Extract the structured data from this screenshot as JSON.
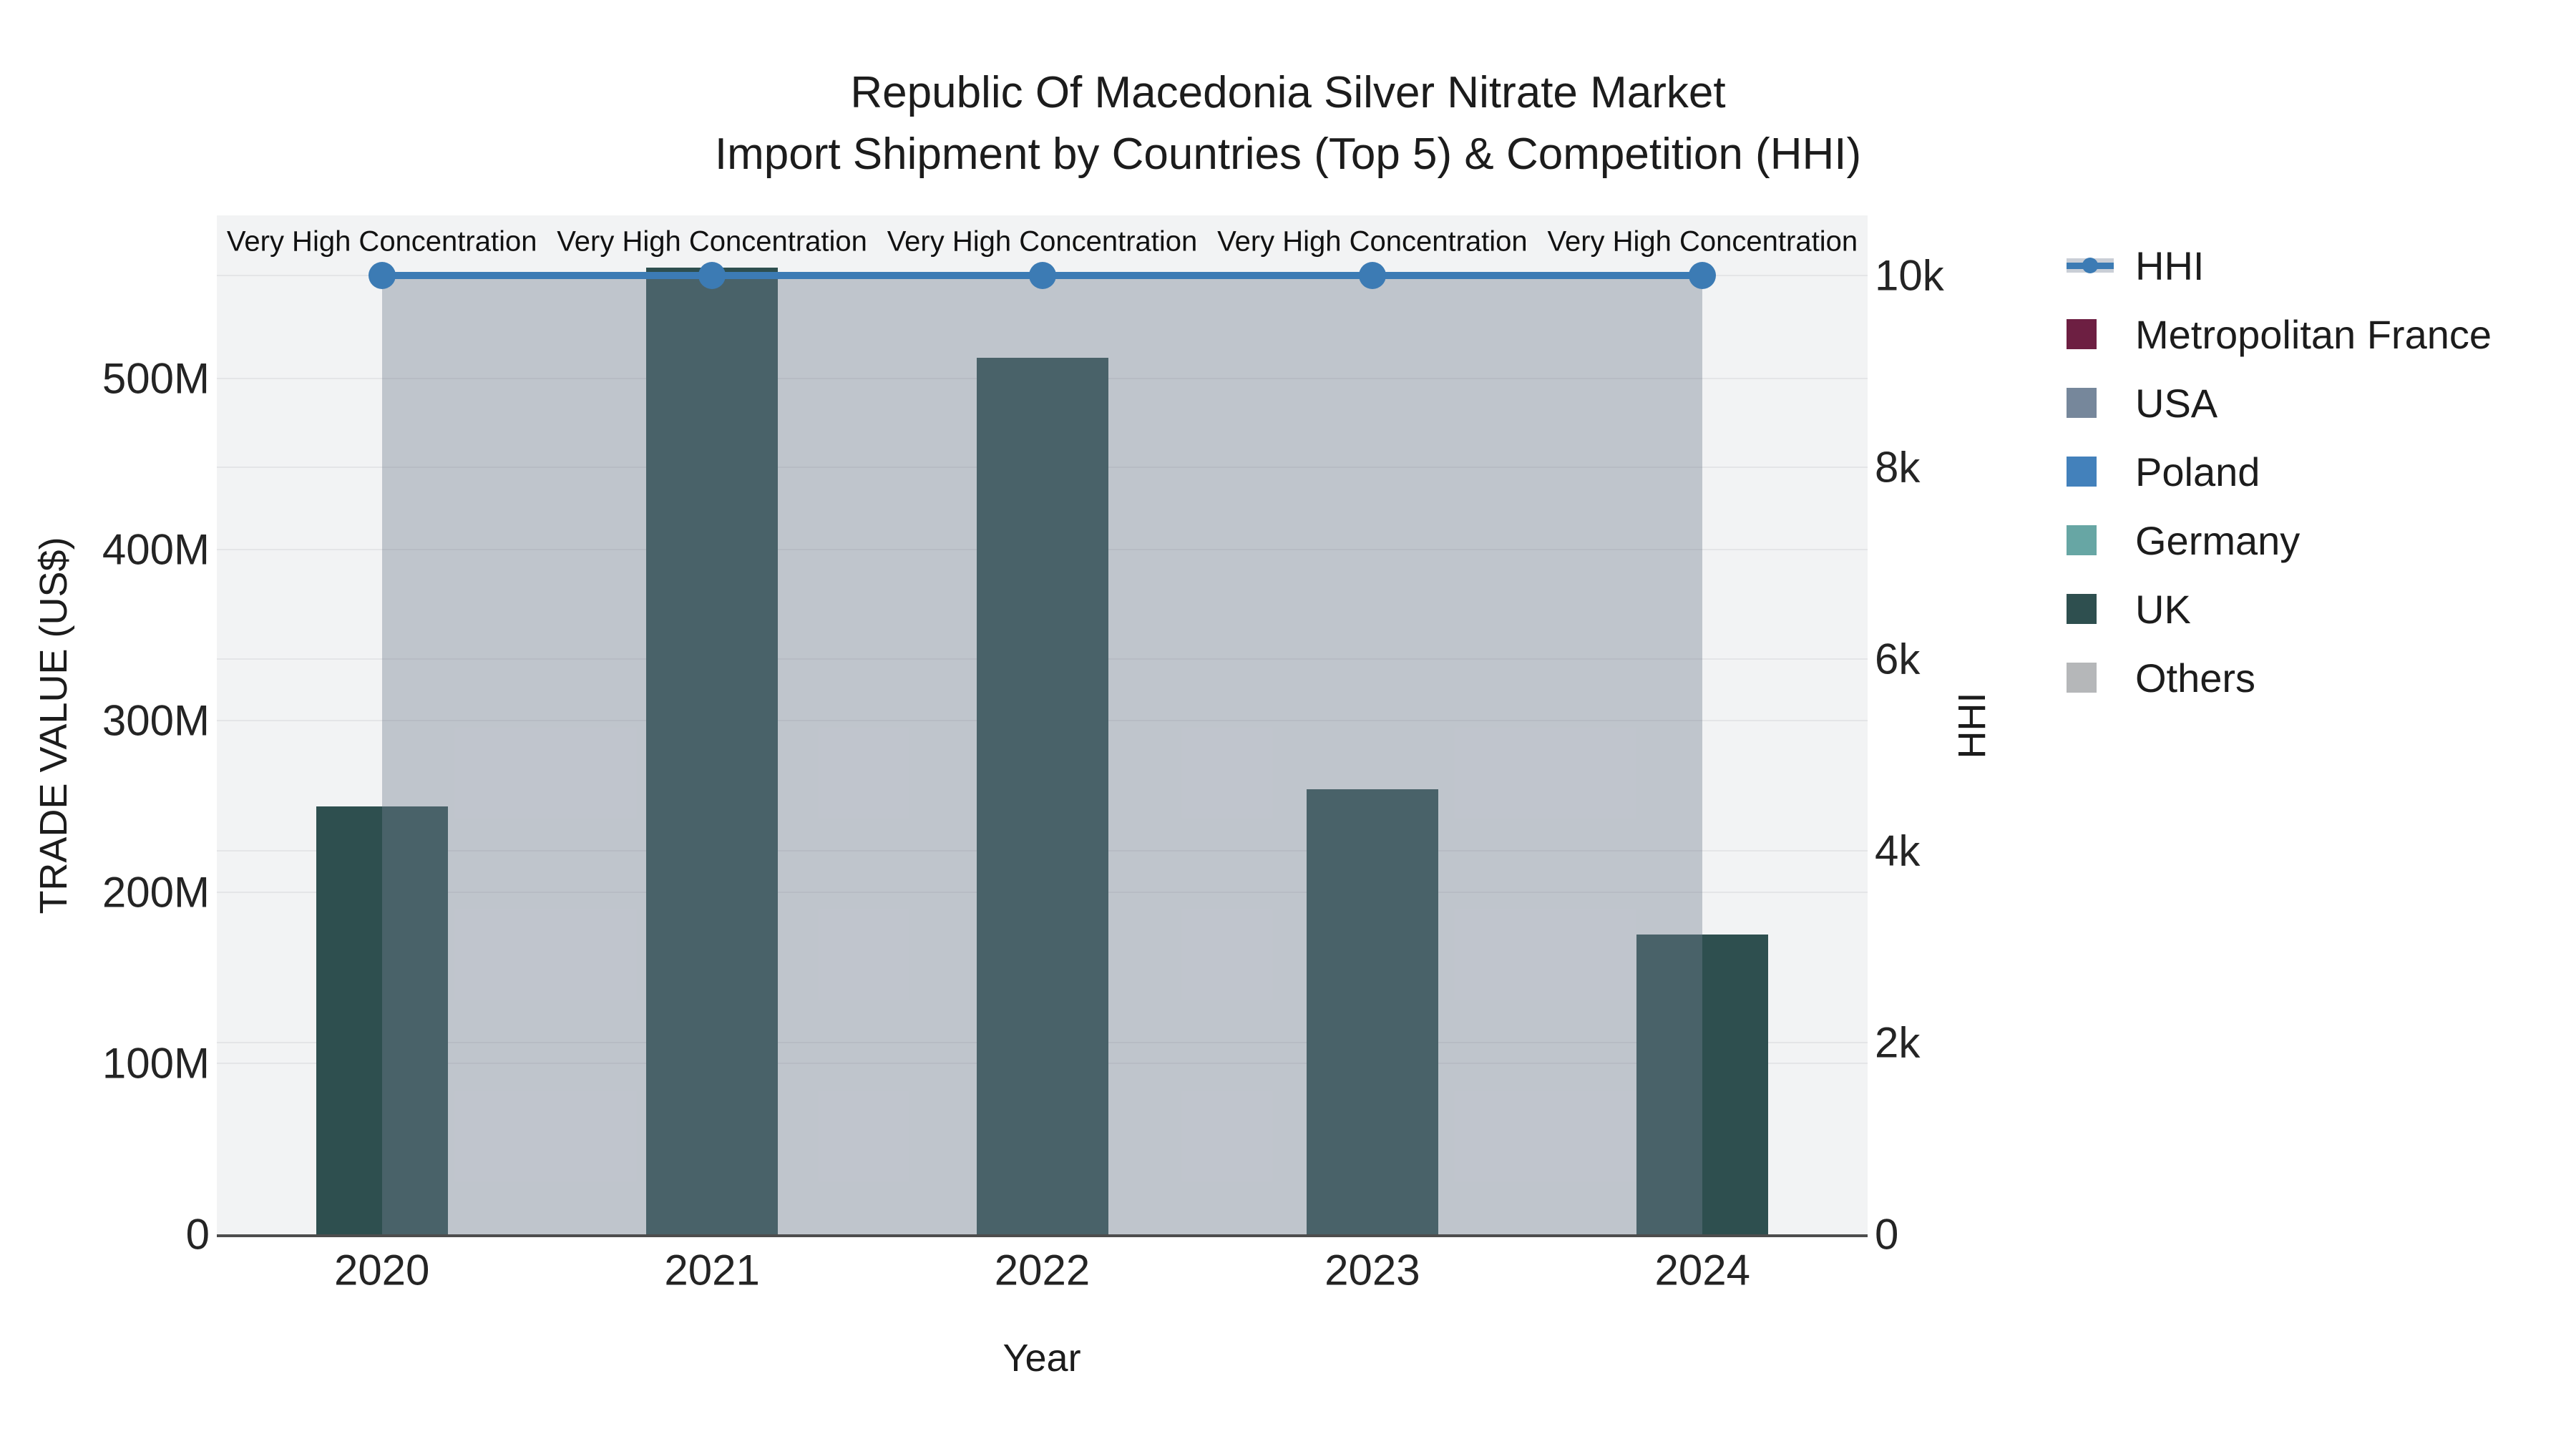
{
  "title": {
    "line1": "Republic Of Macedonia Silver Nitrate Market",
    "line2": "Import Shipment by Countries (Top 5) & Competition (HHI)"
  },
  "axes": {
    "x": {
      "title": "Year",
      "ticks": [
        "2020",
        "2021",
        "2022",
        "2023",
        "2024"
      ]
    },
    "y_left": {
      "title": "TRADE VALUE (US$)",
      "ticks": [
        "0",
        "100M",
        "200M",
        "300M",
        "400M",
        "500M"
      ]
    },
    "y_right": {
      "title": "HHI",
      "ticks": [
        "0",
        "2k",
        "4k",
        "6k",
        "8k",
        "10k"
      ]
    }
  },
  "legend": {
    "position": "right",
    "items": [
      {
        "label": "HHI",
        "type": "line",
        "color": "#3C7BB4",
        "band_color": "#c9ced6"
      },
      {
        "label": "Metropolitan France",
        "type": "swatch",
        "color": "#6D1F42"
      },
      {
        "label": "USA",
        "type": "swatch",
        "color": "#76879B"
      },
      {
        "label": "Poland",
        "type": "swatch",
        "color": "#4381BB"
      },
      {
        "label": "Germany",
        "type": "swatch",
        "color": "#67A6A4"
      },
      {
        "label": "UK",
        "type": "swatch",
        "color": "#2E4F4F"
      },
      {
        "label": "Others",
        "type": "swatch",
        "color": "#B5B7B9"
      }
    ]
  },
  "chart_data": {
    "type": "combo",
    "title": "Republic Of Macedonia Silver Nitrate Market — Import Shipment by Countries (Top 5) & Competition (HHI)",
    "x": [
      2020,
      2021,
      2022,
      2023,
      2024
    ],
    "xlabel": "Year",
    "series": [
      {
        "name": "Trade Value (bar, color matches UK legend swatch)",
        "type": "bar",
        "axis": "left",
        "color": "#2E4F4F",
        "unit": "US$ millions",
        "values": [
          250,
          565,
          512,
          260,
          175
        ]
      },
      {
        "name": "HHI",
        "type": "line",
        "axis": "right",
        "color": "#3C7BB4",
        "fill": "tozeroy",
        "fill_color": "rgba(116,128,146,0.40)",
        "values": [
          10000,
          10000,
          10000,
          10000,
          10000
        ]
      }
    ],
    "point_annotations": [
      "Very High Concentration",
      "Very High Concentration",
      "Very High Concentration",
      "Very High Concentration",
      "Very High Concentration"
    ],
    "y_left_label": "TRADE VALUE (US$)",
    "y_left_ticks_musd": [
      0,
      100,
      200,
      300,
      400,
      500
    ],
    "y_left_range_musd": [
      0,
      595
    ],
    "y_right_label": "HHI",
    "y_right_ticks": [
      0,
      2000,
      4000,
      6000,
      8000,
      10000
    ],
    "y_right_range": [
      0,
      10630
    ],
    "grid": true,
    "legend_position": "right",
    "plot_background": "#f2f3f4"
  }
}
